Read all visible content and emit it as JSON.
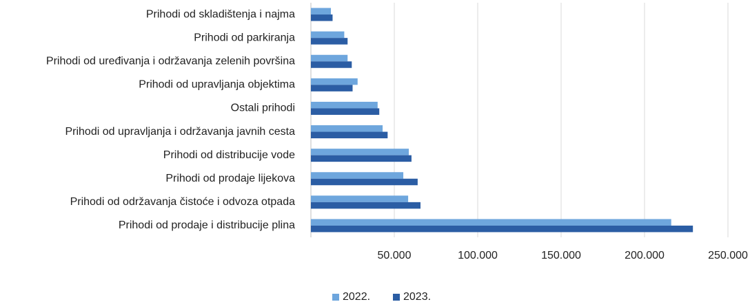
{
  "chart_data": {
    "type": "hbar",
    "categories": [
      "Prihodi od skladištenja i najma",
      "Prihodi od parkiranja",
      "Prihodi od uređivanja i održavanja zelenih površina",
      "Prihodi od upravljanja objektima",
      "Ostali prihodi",
      "Prihodi od upravljanja i održavanja javnih cesta",
      "Prihodi od distribucije vode",
      "Prihodi od prodaje lijekova",
      "Prihodi od održavanja čistoće i odvoza otpada",
      "Prihodi od prodaje i distribucije plina"
    ],
    "series": [
      {
        "name": "2022.",
        "color": "#6ea6dd",
        "values": [
          12000,
          20000,
          22000,
          28000,
          40000,
          43000,
          58700,
          55400,
          58300,
          216000
        ]
      },
      {
        "name": "2023.",
        "color": "#2b5da4",
        "values": [
          13000,
          22000,
          24500,
          25000,
          41000,
          46000,
          60300,
          64000,
          65700,
          229000
        ]
      }
    ],
    "xlim": [
      0,
      250000
    ],
    "xticks": [
      {
        "value": 50000,
        "label": "50.000"
      },
      {
        "value": 100000,
        "label": "100.000"
      },
      {
        "value": 150000,
        "label": "150.000"
      },
      {
        "value": 200000,
        "label": "200.000"
      },
      {
        "value": 250000,
        "label": "250.000"
      }
    ],
    "grid": true,
    "legend": "bottom"
  }
}
